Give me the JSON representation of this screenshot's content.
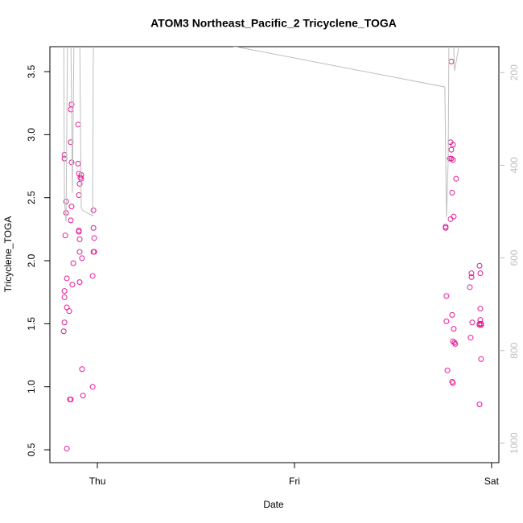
{
  "chart_data": {
    "type": "scatter",
    "title": "ATOM3 Northeast_Pacific_2 Tricyclene_TOGA",
    "xlabel": "Date",
    "ylabel": "Tricyclene_TOGA",
    "xlim": [
      -0.241,
      2.037
    ],
    "ylim": [
      0.398,
      3.698
    ],
    "y2lim": [
      1042,
      144
    ],
    "xticks": [
      {
        "value": 0,
        "label": "Thu"
      },
      {
        "value": 1,
        "label": "Fri"
      },
      {
        "value": 2,
        "label": "Sat"
      }
    ],
    "yticks": [
      0.5,
      {
        "value": 1,
        "label": "1.0"
      },
      1.5,
      {
        "value": 2,
        "label": "2.0"
      },
      2.5,
      {
        "value": 3,
        "label": "3.0"
      },
      3.5
    ],
    "y2ticks": [
      200,
      400,
      600,
      800,
      1000
    ],
    "series": [
      {
        "type": "scatter",
        "color": "#e6199a",
        "x": [
          -0.167,
          -0.167,
          -0.159,
          -0.159,
          -0.163,
          -0.167,
          -0.167,
          -0.167,
          -0.171,
          -0.155,
          -0.155,
          -0.155,
          -0.143,
          -0.139,
          -0.135,
          -0.135,
          -0.135,
          -0.131,
          -0.131,
          -0.131,
          -0.135,
          -0.122,
          -0.127,
          -0.098,
          -0.098,
          -0.094,
          -0.094,
          -0.094,
          -0.094,
          -0.09,
          -0.09,
          -0.09,
          -0.09,
          -0.086,
          -0.082,
          -0.082,
          -0.078,
          -0.078,
          -0.073,
          -0.02,
          -0.016,
          -0.016,
          -0.02,
          -0.02,
          -0.024,
          -0.024,
          1.796,
          1.792,
          1.796,
          1.804,
          1.788,
          1.804,
          1.796,
          1.8,
          1.792,
          1.808,
          1.82,
          1.767,
          1.767,
          1.771,
          1.771,
          1.776,
          1.8,
          1.808,
          1.804,
          1.812,
          1.816,
          1.8,
          1.804,
          1.898,
          1.898,
          1.89,
          1.939,
          1.943,
          1.943,
          1.943,
          1.947,
          1.947,
          1.939,
          1.939,
          1.947,
          1.902,
          1.894,
          1.939
        ],
        "values": [
          2.84,
          2.81,
          2.47,
          2.38,
          2.2,
          1.76,
          1.71,
          1.51,
          1.44,
          0.51,
          1.86,
          1.63,
          1.6,
          0.9,
          0.9,
          2.94,
          3.2,
          3.24,
          2.78,
          2.43,
          2.32,
          1.98,
          1.81,
          3.08,
          2.77,
          2.69,
          2.52,
          2.24,
          2.23,
          1.83,
          2.17,
          2.07,
          2.61,
          2.66,
          2.68,
          2.65,
          2.02,
          1.14,
          0.93,
          2.4,
          2.07,
          2.18,
          2.26,
          2.07,
          1.88,
          1.0,
          3.58,
          2.94,
          2.88,
          2.92,
          2.81,
          2.8,
          2.81,
          2.54,
          2.33,
          2.35,
          2.65,
          2.27,
          2.26,
          1.72,
          1.52,
          1.13,
          1.57,
          1.46,
          1.36,
          1.35,
          1.34,
          1.04,
          1.03,
          1.9,
          1.87,
          1.79,
          1.96,
          1.9,
          1.62,
          1.53,
          1.5,
          1.49,
          1.49,
          1.5,
          1.22,
          1.51,
          1.39,
          0.86
        ]
      },
      {
        "type": "line",
        "axis": "y2",
        "color": "#bebebe",
        "x": [
          -0.171,
          -0.167,
          -0.159,
          -0.151,
          -0.135,
          -0.127,
          -0.118,
          -0.09,
          -0.082,
          -0.073,
          -0.024,
          -0.02,
          0.714,
          1.763,
          1.771,
          1.78,
          1.784,
          1.804,
          1.812,
          1.853
        ],
        "values": [
          100,
          478,
          521,
          100,
          100,
          460,
          100,
          100,
          492,
          498,
          509,
          100,
          145,
          231,
          512,
          391,
          100,
          100,
          196,
          100
        ]
      }
    ]
  }
}
